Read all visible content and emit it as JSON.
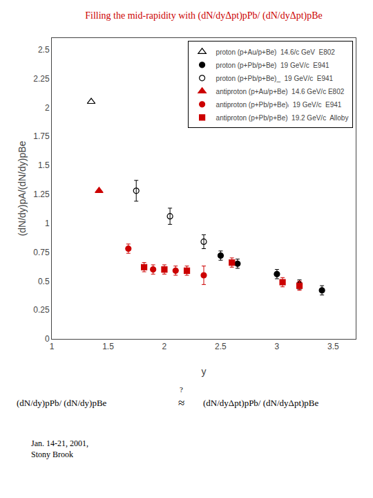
{
  "chart_data": {
    "type": "scatter",
    "title": "Filling the mid-rapidity with (dN/dyΔpt)pPb/ (dN/dyΔpt)pBe",
    "title_color": "#cc0000",
    "x_label": "y",
    "y_label": "(dN/dy)pA/(dN/dy)pBe",
    "xlim": [
      1.0,
      3.7
    ],
    "ylim": [
      0.0,
      2.6
    ],
    "xticks": [
      1,
      1.5,
      2,
      2.5,
      3,
      3.5
    ],
    "yticks": [
      0,
      0.25,
      0.5,
      0.75,
      1,
      1.25,
      1.5,
      1.75,
      2,
      2.25,
      2.5
    ],
    "grid": false,
    "legend": "upper right",
    "series": [
      {
        "name": "proton (p+Au/p+Be)  14.6/c GeV  E802",
        "color": "#000000",
        "marker": "triangle-up-open",
        "x": [
          1.35
        ],
        "values": [
          2.05
        ],
        "yerr": [
          0
        ]
      },
      {
        "name": "proton (p+Pb/p+Be)  19 GeV/c  E941",
        "color": "#000000",
        "marker": "circle",
        "x": [
          2.5,
          2.65,
          3.0,
          3.2,
          3.4
        ],
        "values": [
          0.72,
          0.65,
          0.56,
          0.47,
          0.42
        ],
        "yerr": [
          0.04,
          0.04,
          0.04,
          0.04,
          0.04
        ]
      },
      {
        "name": "proton (p+Pb/p+Be)_  19 GeV/c  E941",
        "color": "#000000",
        "marker": "circle-open",
        "x": [
          1.75,
          2.05,
          2.35
        ],
        "values": [
          1.28,
          1.06,
          0.84
        ],
        "yerr": [
          0.09,
          0.07,
          0.06
        ]
      },
      {
        "name": "antiproton (p+Au/p+Be)  14.6 GeV/c E802",
        "color": "#cc0000",
        "marker": "triangle-up",
        "x": [
          1.42
        ],
        "values": [
          1.28
        ],
        "yerr": [
          0
        ]
      },
      {
        "name": "antiproton (p+Pb/p+Be)ₗ  19 GeV/c  E941",
        "color": "#cc0000",
        "marker": "circle",
        "x": [
          1.68,
          1.9,
          2.1,
          2.35
        ],
        "values": [
          0.78,
          0.6,
          0.59,
          0.55
        ],
        "yerr": [
          0.04,
          0.04,
          0.04,
          0.08
        ]
      },
      {
        "name": "antiproton (p+Pb/p+Be)  19.2 GeV/c  Alloby",
        "color": "#cc0000",
        "marker": "square",
        "x": [
          1.82,
          2.0,
          2.2,
          2.6,
          3.05,
          3.2
        ],
        "values": [
          0.62,
          0.6,
          0.59,
          0.66,
          0.49,
          0.46
        ],
        "yerr": [
          0.04,
          0.04,
          0.04,
          0.04,
          0.04,
          0.04
        ]
      }
    ],
    "annotations": [
      "(dN/dy)pPb/ (dN/dy)pBe",
      "≈",
      "?",
      "(dN/dyΔpt)pPb/ (dN/dyΔpt)pBe",
      "Jan. 14-21, 2001,\nStony Brook"
    ]
  }
}
